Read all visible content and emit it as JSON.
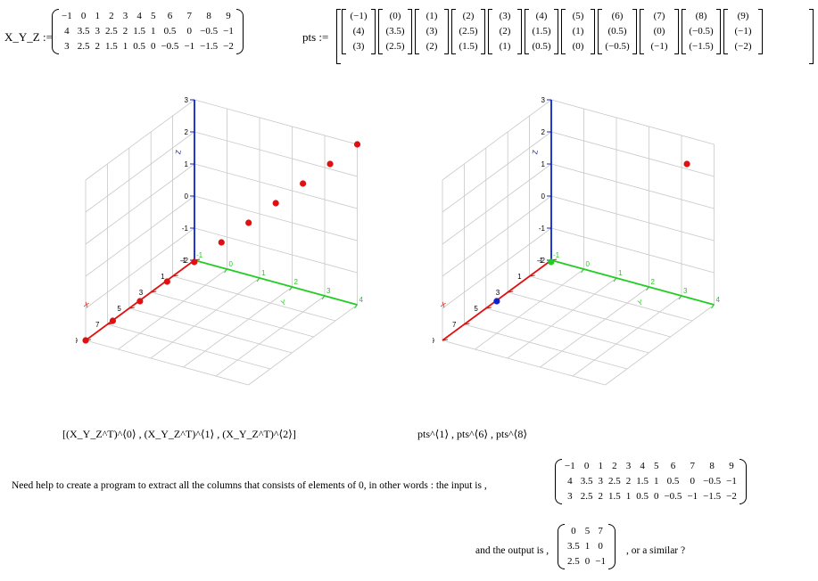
{
  "xyz": {
    "label": "X_Y_Z :=",
    "rows": [
      [
        "−1",
        "0",
        "1",
        "2",
        "3",
        "4",
        "5",
        "6",
        "7",
        "8",
        "9"
      ],
      [
        "4",
        "3.5",
        "3",
        "2.5",
        "2",
        "1.5",
        "1",
        "0.5",
        "0",
        "−0.5",
        "−1"
      ],
      [
        "3",
        "2.5",
        "2",
        "1.5",
        "1",
        "0.5",
        "0",
        "−0.5",
        "−1",
        "−1.5",
        "−2"
      ]
    ]
  },
  "pts": {
    "label": "pts :=",
    "columns": [
      [
        "(−1)",
        "(4)",
        "(3)"
      ],
      [
        "(0)",
        "(3.5)",
        "(2.5)"
      ],
      [
        "(1)",
        "(3)",
        "(2)"
      ],
      [
        "(2)",
        "(2.5)",
        "(1.5)"
      ],
      [
        "(3)",
        "(2)",
        "(1)"
      ],
      [
        "(4)",
        "(1.5)",
        "(0.5)"
      ],
      [
        "(5)",
        "(1)",
        "(0)"
      ],
      [
        "(6)",
        "(0.5)",
        "(−0.5)"
      ],
      [
        "(7)",
        "(0)",
        "(−1)"
      ],
      [
        "(8)",
        "(−0.5)",
        "(−1.5)"
      ],
      [
        "(9)",
        "(−1)",
        "(−2)"
      ]
    ]
  },
  "plots": {
    "axis_names": {
      "x": "X",
      "y": "Y",
      "z": "Z"
    },
    "x_ticks": [
      "-1",
      "1",
      "3",
      "5",
      "7",
      "9"
    ],
    "y_ticks": [
      "-1",
      "0",
      "1",
      "2",
      "3",
      "4"
    ],
    "z_ticks": [
      "-2",
      "-1",
      "0",
      "1",
      "2",
      "3"
    ],
    "left_caption": "[(X_Y_Z^T)^⟨0⟩ , (X_Y_Z^T)^⟨1⟩ , (X_Y_Z^T)^⟨2⟩]",
    "right_caption": "pts^⟨1⟩ , pts^⟨6⟩ , pts^⟨8⟩",
    "colors": {
      "red": "#e01010",
      "green": "#22cc22",
      "blue": "#1020d0",
      "grid": "#c8c8c8"
    }
  },
  "question": {
    "text": "Need help to create a program to extract all the columns that consists of elements of 0, in other words : the input is ,",
    "input_rows": [
      [
        "−1",
        "0",
        "1",
        "2",
        "3",
        "4",
        "5",
        "6",
        "7",
        "8",
        "9"
      ],
      [
        "4",
        "3.5",
        "3",
        "2.5",
        "2",
        "1.5",
        "1",
        "0.5",
        "0",
        "−0.5",
        "−1"
      ],
      [
        "3",
        "2.5",
        "2",
        "1.5",
        "1",
        "0.5",
        "0",
        "−0.5",
        "−1",
        "−1.5",
        "−2"
      ]
    ],
    "output_prefix": "and the output is ,",
    "output_rows": [
      [
        "0",
        "5",
        "7"
      ],
      [
        "3.5",
        "1",
        "0"
      ],
      [
        "2.5",
        "0",
        "−1"
      ]
    ],
    "output_suffix": ", or a similar ?"
  }
}
